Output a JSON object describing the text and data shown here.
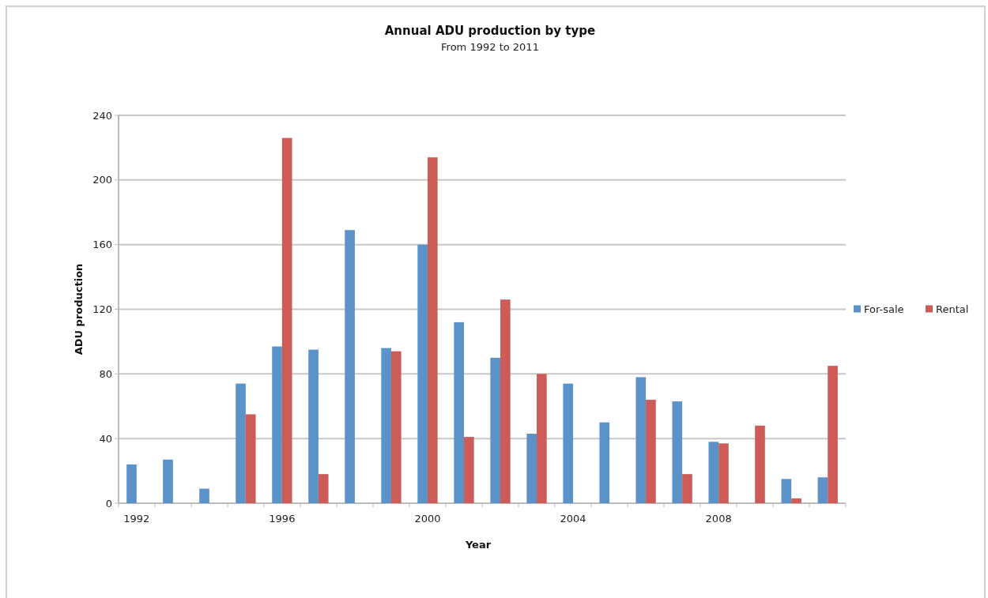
{
  "chart_data": {
    "type": "bar",
    "title": "Annual ADU production by type",
    "subtitle": "From 1992 to 2011",
    "xlabel": "Year",
    "ylabel": "ADU production",
    "categories": [
      "1992",
      null,
      null,
      null,
      "1996",
      null,
      null,
      null,
      "2000",
      null,
      null,
      null,
      "2004",
      null,
      null,
      null,
      "2008",
      null,
      null,
      null
    ],
    "series": [
      {
        "name": "For-sale",
        "color": "#5b93c9",
        "values": [
          24,
          27,
          9,
          74,
          97,
          95,
          169,
          96,
          160,
          112,
          90,
          43,
          74,
          50,
          78,
          63,
          38,
          0,
          15,
          16
        ]
      },
      {
        "name": "Rental",
        "color": "#cd5c58",
        "values": [
          0,
          0,
          0,
          55,
          226,
          18,
          0,
          94,
          214,
          41,
          126,
          80,
          0,
          0,
          64,
          18,
          37,
          48,
          3,
          85
        ]
      }
    ],
    "ylim": [
      0,
      240
    ],
    "yticks": [
      0,
      40,
      80,
      120,
      160,
      200,
      240
    ],
    "grid": "y",
    "legend": "right"
  }
}
